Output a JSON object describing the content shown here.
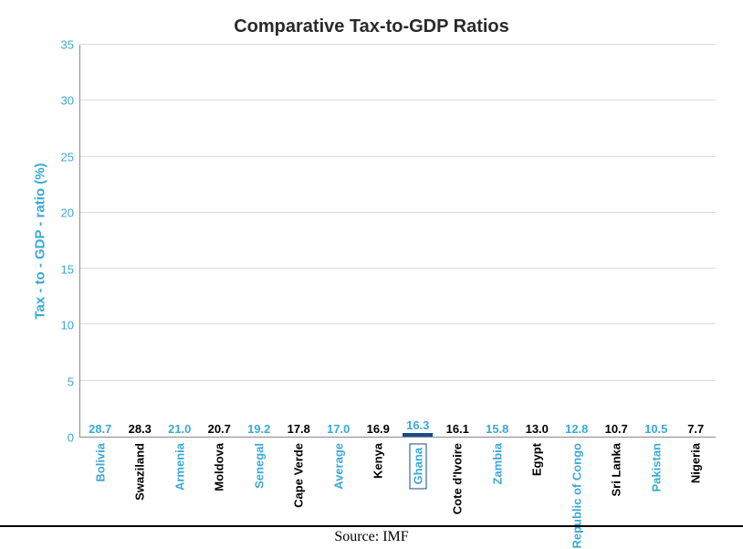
{
  "chart": {
    "type": "bar",
    "title": "Comparative Tax-to-GDP Ratios",
    "title_fontsize": 20,
    "ylabel": "Tax - to - GDP - ratio (%)",
    "ylabel_color": "#3BA9D4",
    "ylabel_fontsize": 15,
    "ylim": [
      0,
      35
    ],
    "ytick_step": 5,
    "yticks": [
      0,
      5,
      10,
      15,
      20,
      25,
      30,
      35
    ],
    "tick_color": "#3BA9D4",
    "grid_color": "#dcdcdc",
    "axis_color": "#888888",
    "background_color": "#ffffff",
    "bar_width": 0.76,
    "highlight_border_color": "#1A4B8C",
    "categories": [
      "Bolivia",
      "Swaziland",
      "Armenia",
      "Moldova",
      "Senegal",
      "Cape Verde",
      "Average",
      "Kenya",
      "Ghana",
      "Cote d'Ivoire",
      "Zambia",
      "Egypt",
      "Republic of Congo",
      "Sri Lanka",
      "Pakistan",
      "Nigeria"
    ],
    "values": [
      28.7,
      28.3,
      21.0,
      20.7,
      19.2,
      17.8,
      17.0,
      16.9,
      16.3,
      16.1,
      15.8,
      13.0,
      12.8,
      10.7,
      10.5,
      7.7
    ],
    "bar_colors": [
      "#3BA9D4",
      "#FCF3B7",
      "#3BA9D4",
      "#FCF3B7",
      "#3BA9D4",
      "#FCF3B7",
      "#3BA9D4",
      "#FCF3B7",
      "#4D88C4",
      "#FCF3B7",
      "#3BA9D4",
      "#FCF3B7",
      "#3BA9D4",
      "#FCF3B7",
      "#3BA9D4",
      "#FCF3B7"
    ],
    "label_colors": [
      "#3BA9D4",
      "#000000",
      "#3BA9D4",
      "#000000",
      "#3BA9D4",
      "#000000",
      "#3BA9D4",
      "#000000",
      "#3BA9D4",
      "#000000",
      "#3BA9D4",
      "#000000",
      "#3BA9D4",
      "#000000",
      "#3BA9D4",
      "#000000"
    ],
    "xlabel_colors": [
      "#3BA9D4",
      "#000000",
      "#3BA9D4",
      "#000000",
      "#3BA9D4",
      "#000000",
      "#3BA9D4",
      "#000000",
      "#3BA9D4",
      "#000000",
      "#3BA9D4",
      "#000000",
      "#3BA9D4",
      "#000000",
      "#3BA9D4",
      "#000000"
    ],
    "highlight_index": 8,
    "source": "Source: IMF"
  }
}
